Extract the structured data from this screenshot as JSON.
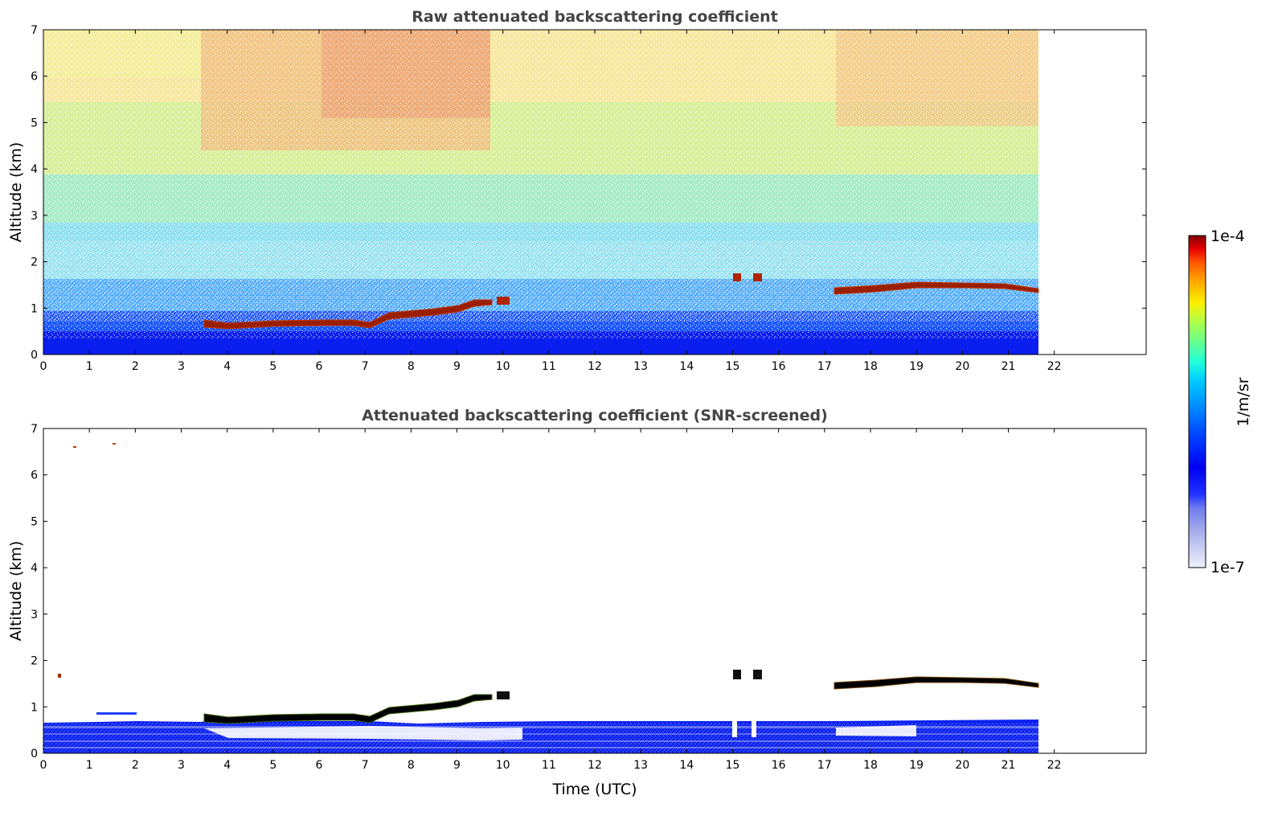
{
  "chart_data": [
    {
      "type": "heatmap",
      "title": "Raw attenuated backscattering coefficient",
      "xlabel": "",
      "ylabel": "Altitude (km)",
      "xlim": [
        0,
        24
      ],
      "ylim": [
        0,
        7
      ],
      "x_ticks": [
        "0",
        "1",
        "2",
        "3",
        "4",
        "5",
        "6",
        "7",
        "8",
        "9",
        "10",
        "11",
        "12",
        "13",
        "14",
        "15",
        "16",
        "17",
        "18",
        "19",
        "20",
        "21",
        "22"
      ],
      "y_ticks": [
        "0",
        "1",
        "2",
        "3",
        "4",
        "5",
        "6",
        "7"
      ],
      "data_time_range": [
        0,
        21.65
      ],
      "layers": [
        {
          "from": 0.0,
          "to": 0.5,
          "value": "1e-6 (blue)"
        },
        {
          "from": 0.5,
          "to": 1.6,
          "value": "2e-6 (blue-cyan, speckled)"
        },
        {
          "from": 1.6,
          "to": 7.0,
          "value": "noisy 5e-6 to 1e-4 (cyan/yellow/red)"
        }
      ],
      "cloud_base": [
        {
          "time": 3.5,
          "altitude_km": 0.73
        },
        {
          "time": 4.5,
          "altitude_km": 0.68
        },
        {
          "time": 5.5,
          "altitude_km": 0.7
        },
        {
          "time": 6.5,
          "altitude_km": 0.72
        },
        {
          "time": 7.0,
          "altitude_km": 0.7
        },
        {
          "time": 7.5,
          "altitude_km": 0.88
        },
        {
          "time": 8.5,
          "altitude_km": 0.98
        },
        {
          "time": 9.0,
          "altitude_km": 1.0
        },
        {
          "time": 9.75,
          "altitude_km": 1.15
        },
        {
          "time": 10.1,
          "altitude_km": 1.15
        },
        {
          "time": 15.1,
          "altitude_km": 1.68
        },
        {
          "time": 15.5,
          "altitude_km": 1.68
        },
        {
          "time": 17.2,
          "altitude_km": 1.45
        },
        {
          "time": 18.0,
          "altitude_km": 1.48
        },
        {
          "time": 19.0,
          "altitude_km": 1.55
        },
        {
          "time": 20.0,
          "altitude_km": 1.53
        },
        {
          "time": 21.0,
          "altitude_km": 1.48
        },
        {
          "time": 21.65,
          "altitude_km": 1.4
        }
      ]
    },
    {
      "type": "heatmap",
      "title": "Attenuated backscattering coefficient (SNR-screened)",
      "xlabel": "Time (UTC)",
      "ylabel": "Altitude (km)",
      "xlim": [
        0,
        24
      ],
      "ylim": [
        0,
        7
      ],
      "x_ticks": [
        "0",
        "1",
        "2",
        "3",
        "4",
        "5",
        "6",
        "7",
        "8",
        "9",
        "10",
        "11",
        "12",
        "13",
        "14",
        "15",
        "16",
        "17",
        "18",
        "19",
        "20",
        "21",
        "22"
      ],
      "y_ticks": [
        "0",
        "1",
        "2",
        "3",
        "4",
        "5",
        "6",
        "7"
      ],
      "data_time_range": [
        0,
        21.65
      ],
      "screened_boundary_layer_top_km": 0.7,
      "cloud_base": "same as raw panel, rendered black/dark",
      "isolated_points": [
        {
          "time": 0.7,
          "altitude_km": 6.58
        },
        {
          "time": 1.5,
          "altitude_km": 6.66
        },
        {
          "time": 0.35,
          "altitude_km": 1.67
        }
      ]
    }
  ],
  "colorbar": {
    "label": "1/m/sr",
    "max_label": "1e-4",
    "min_label": "1e-7",
    "scale": "log",
    "colors": [
      "#eef0fa",
      "#c8cdf0",
      "#9ea6ea",
      "#6f7bee",
      "#2233ff",
      "#0000f0",
      "#0044ff",
      "#0088ff",
      "#00c8ff",
      "#22ffd8",
      "#66ff90",
      "#b0ff48",
      "#ffee00",
      "#ffaa00",
      "#ff5500",
      "#e60000",
      "#800000"
    ]
  }
}
